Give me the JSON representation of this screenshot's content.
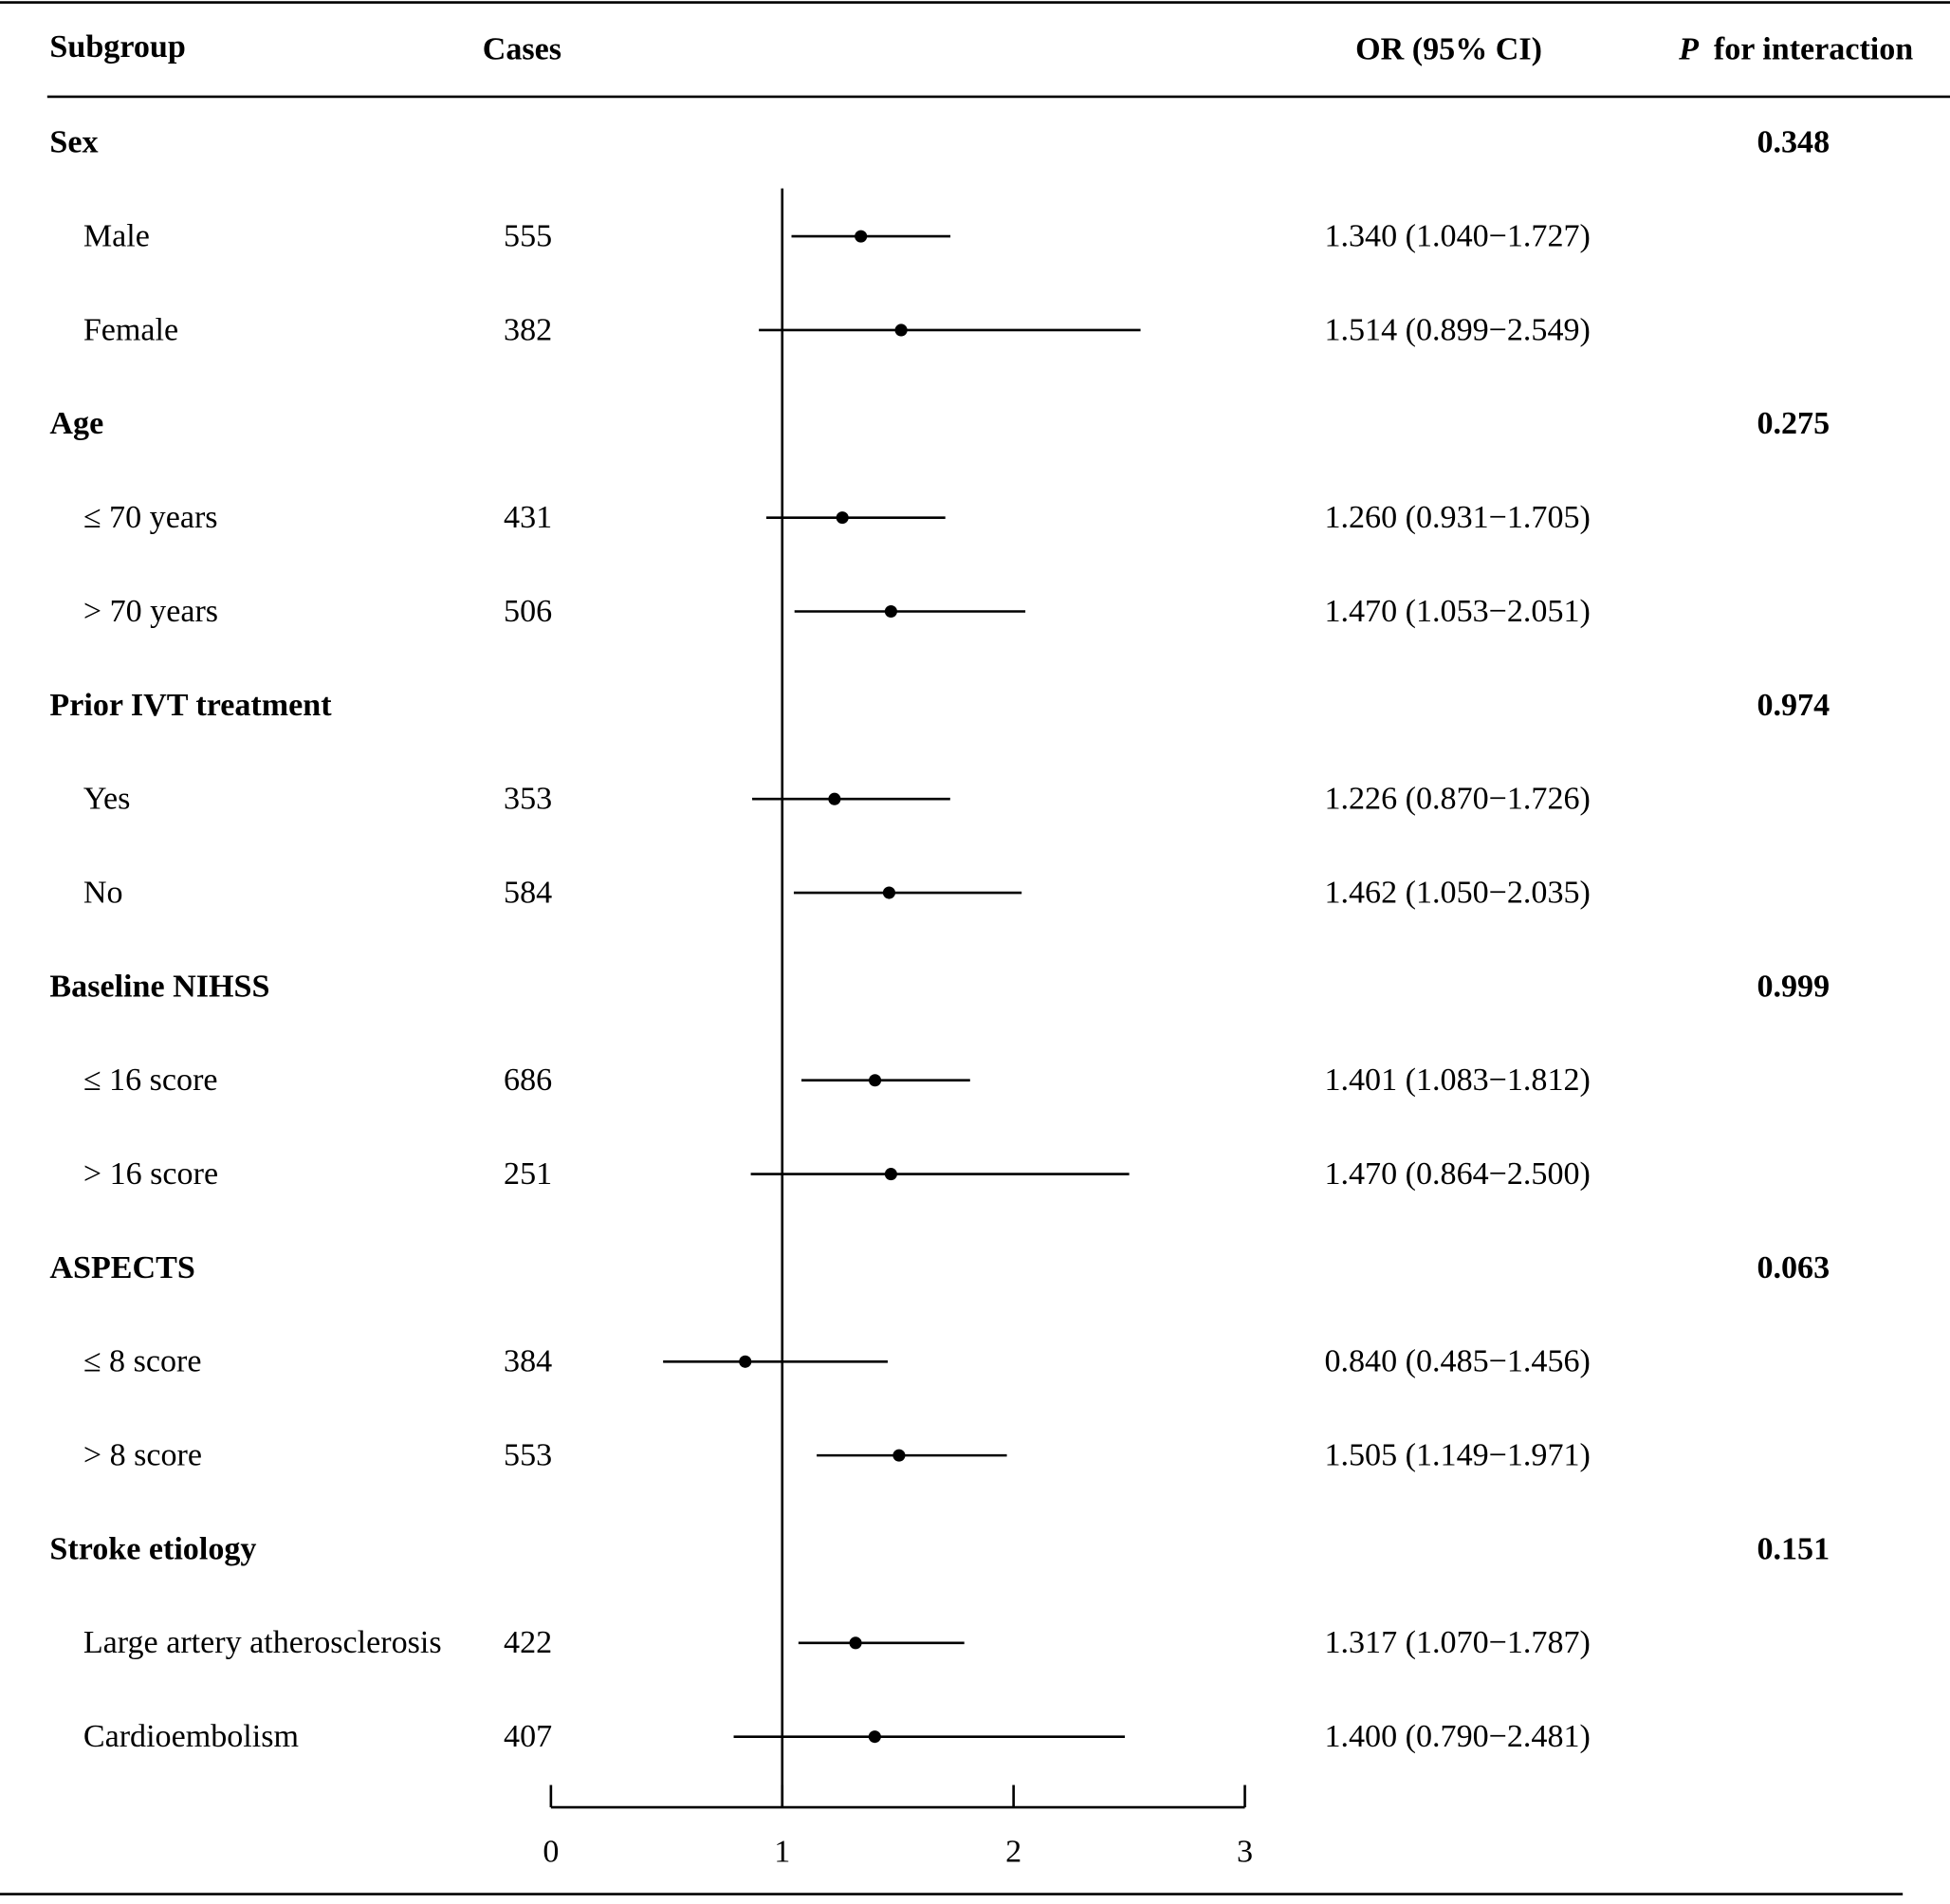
{
  "chart_data": {
    "type": "forest",
    "headers": {
      "subgroup": "Subgroup",
      "cases": "Cases",
      "or": "OR (95% CI)",
      "p_symbol": "P",
      "p": "for interaction"
    },
    "xlim": [
      0,
      3
    ],
    "xticks": [
      0,
      1,
      2,
      3
    ],
    "reference": 1,
    "groups": [
      {
        "name": "Sex",
        "p": 0.348,
        "rows": [
          {
            "label": "Male",
            "cases": 555,
            "or": 1.34,
            "lo": 1.04,
            "hi": 1.727,
            "ci_label": "1.340 (1.040−1.727)"
          },
          {
            "label": "Female",
            "cases": 382,
            "or": 1.514,
            "lo": 0.899,
            "hi": 2.549,
            "ci_label": "1.514 (0.899−2.549)"
          }
        ]
      },
      {
        "name": "Age",
        "p": 0.275,
        "rows": [
          {
            "label": "≤ 70 years",
            "cases": 431,
            "or": 1.26,
            "lo": 0.931,
            "hi": 1.705,
            "ci_label": "1.260 (0.931−1.705)"
          },
          {
            "label": "> 70 years",
            "cases": 506,
            "or": 1.47,
            "lo": 1.053,
            "hi": 2.051,
            "ci_label": "1.470 (1.053−2.051)"
          }
        ]
      },
      {
        "name": "Prior IVT treatment",
        "p": 0.974,
        "rows": [
          {
            "label": "Yes",
            "cases": 353,
            "or": 1.226,
            "lo": 0.87,
            "hi": 1.726,
            "ci_label": "1.226 (0.870−1.726)"
          },
          {
            "label": "No",
            "cases": 584,
            "or": 1.462,
            "lo": 1.05,
            "hi": 2.035,
            "ci_label": "1.462 (1.050−2.035)"
          }
        ]
      },
      {
        "name": "Baseline NIHSS",
        "p": 0.999,
        "rows": [
          {
            "label": "≤  16 score",
            "cases": 686,
            "or": 1.401,
            "lo": 1.083,
            "hi": 1.812,
            "ci_label": "1.401 (1.083−1.812)"
          },
          {
            "label": "> 16 score",
            "cases": 251,
            "or": 1.47,
            "lo": 0.864,
            "hi": 2.5,
            "ci_label": "1.470 (0.864−2.500)"
          }
        ]
      },
      {
        "name": "ASPECTS",
        "p": 0.063,
        "rows": [
          {
            "label": "≤ 8 score",
            "cases": 384,
            "or": 0.84,
            "lo": 0.485,
            "hi": 1.456,
            "ci_label": "0.840 (0.485−1.456)"
          },
          {
            "label": "> 8 score",
            "cases": 553,
            "or": 1.505,
            "lo": 1.149,
            "hi": 1.971,
            "ci_label": "1.505 (1.149−1.971)"
          }
        ]
      },
      {
        "name": "Stroke etiology",
        "p": 0.151,
        "rows": [
          {
            "label": "Large artery atherosclerosis",
            "cases": 422,
            "or": 1.317,
            "lo": 1.07,
            "hi": 1.787,
            "ci_label": "1.317 (1.070−1.787)"
          },
          {
            "label": "Cardioembolism",
            "cases": 407,
            "or": 1.4,
            "lo": 0.79,
            "hi": 2.481,
            "ci_label": "1.400 (0.790−2.481)"
          }
        ]
      }
    ]
  }
}
